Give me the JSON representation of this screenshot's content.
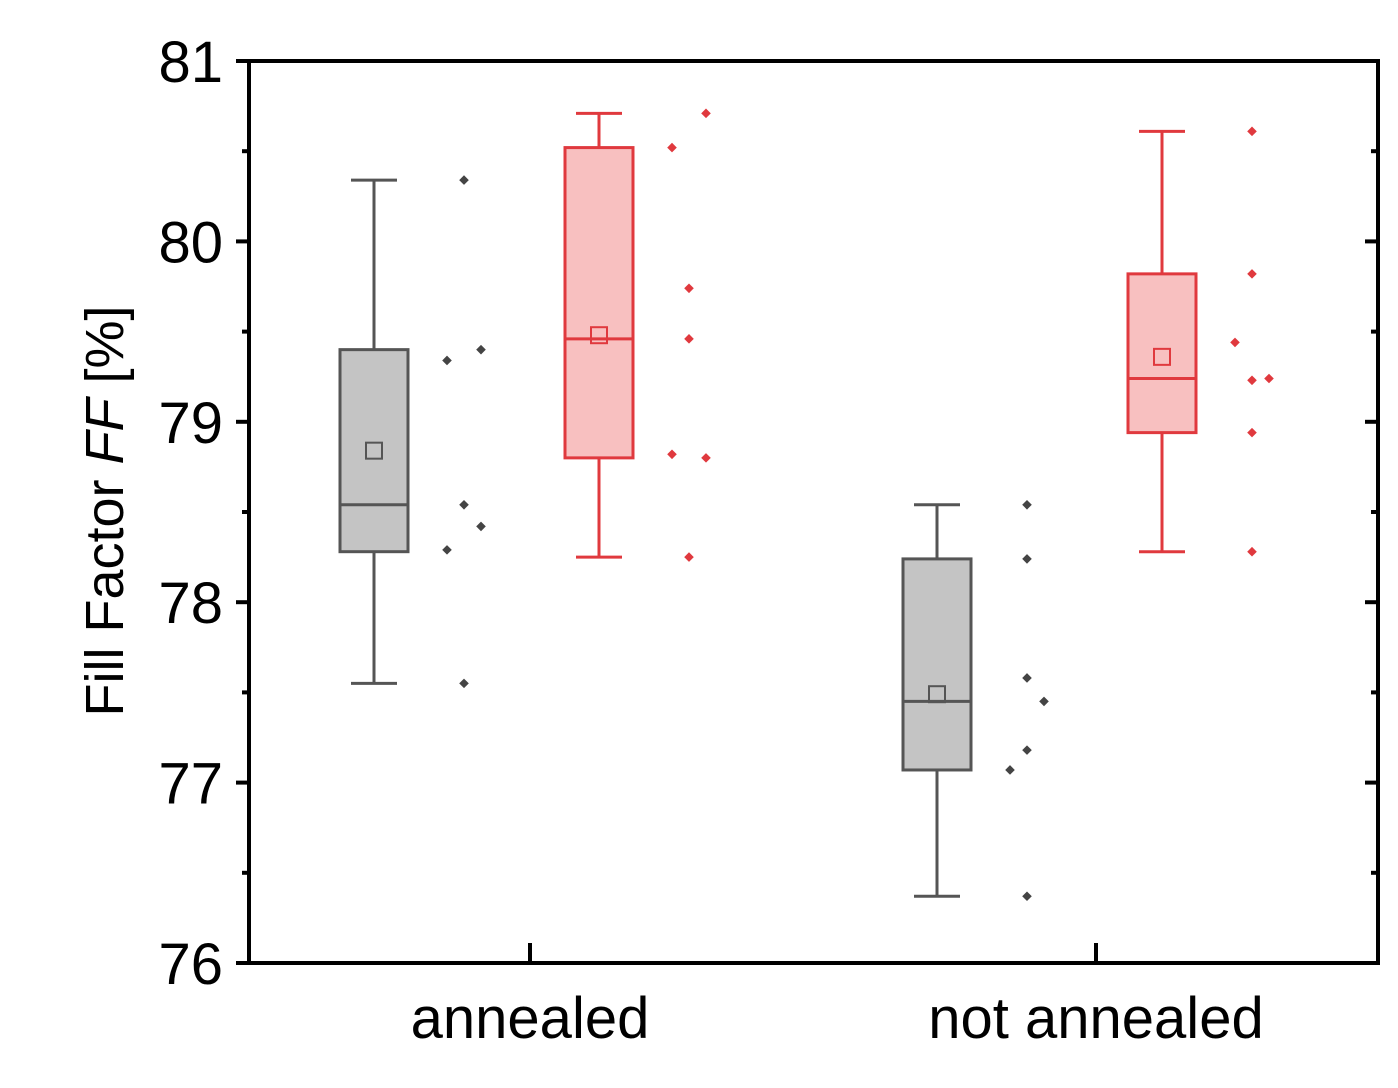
{
  "chart_data": {
    "type": "box",
    "ylabel": {
      "prefix": "Fill Factor ",
      "italic": "FF",
      "suffix": " [%]"
    },
    "ylim": [
      76,
      81
    ],
    "yticks": [
      "76",
      "77",
      "78",
      "79",
      "80",
      "81"
    ],
    "categories": [
      "annealed",
      "not annealed"
    ],
    "grid": false,
    "colors": {
      "gray_stroke": "#555555",
      "gray_fill": "#c4c4c4",
      "gray_point": "#444444",
      "red_stroke": "#e0393e",
      "red_fill": "#f8c0c0",
      "red_point": "#e0393e"
    },
    "boxes": [
      {
        "category": "annealed",
        "style": "gray",
        "whisker_low": 77.55,
        "q1": 78.28,
        "median": 78.54,
        "q3": 79.4,
        "whisker_high": 80.34,
        "mean": 78.84,
        "points": [
          {
            "offset": 0,
            "y": 80.34
          },
          {
            "offset": -1,
            "y": 79.34
          },
          {
            "offset": 1,
            "y": 79.4
          },
          {
            "offset": 0,
            "y": 78.54
          },
          {
            "offset": 1,
            "y": 78.42
          },
          {
            "offset": -1,
            "y": 78.29
          },
          {
            "offset": 0,
            "y": 77.55
          }
        ]
      },
      {
        "category": "annealed",
        "style": "red",
        "whisker_low": 78.25,
        "q1": 78.8,
        "median": 79.46,
        "q3": 80.52,
        "whisker_high": 80.71,
        "mean": 79.48,
        "points": [
          {
            "offset": 1,
            "y": 80.71
          },
          {
            "offset": -1,
            "y": 80.52
          },
          {
            "offset": 0,
            "y": 79.74
          },
          {
            "offset": 0,
            "y": 79.46
          },
          {
            "offset": -1,
            "y": 78.82
          },
          {
            "offset": 1,
            "y": 78.8
          },
          {
            "offset": 0,
            "y": 78.25
          }
        ]
      },
      {
        "category": "not annealed",
        "style": "gray",
        "whisker_low": 76.37,
        "q1": 77.07,
        "median": 77.45,
        "q3": 78.24,
        "whisker_high": 78.54,
        "mean": 77.49,
        "points": [
          {
            "offset": 0,
            "y": 78.54
          },
          {
            "offset": 0,
            "y": 78.24
          },
          {
            "offset": 0,
            "y": 77.58
          },
          {
            "offset": 1,
            "y": 77.45
          },
          {
            "offset": 0,
            "y": 77.18
          },
          {
            "offset": -1,
            "y": 77.07
          },
          {
            "offset": 0,
            "y": 76.37
          }
        ]
      },
      {
        "category": "not annealed",
        "style": "red",
        "whisker_low": 78.28,
        "q1": 78.94,
        "median": 79.24,
        "q3": 79.82,
        "whisker_high": 80.61,
        "mean": 79.36,
        "points": [
          {
            "offset": 0,
            "y": 80.61
          },
          {
            "offset": 0,
            "y": 79.82
          },
          {
            "offset": -1,
            "y": 79.44
          },
          {
            "offset": 0,
            "y": 79.23
          },
          {
            "offset": 1,
            "y": 79.24
          },
          {
            "offset": 0,
            "y": 78.94
          },
          {
            "offset": 0,
            "y": 78.28
          }
        ]
      }
    ]
  }
}
